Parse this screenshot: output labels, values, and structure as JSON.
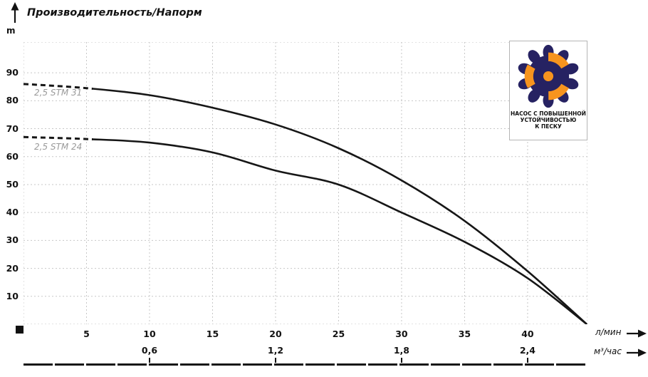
{
  "title": "Производительность/Напорм",
  "y_axis": {
    "unit_label": "m",
    "ticks": [
      90,
      80,
      70,
      60,
      50,
      40,
      30,
      20,
      10
    ]
  },
  "x_axis_primary": {
    "unit_label": "л/мин",
    "ticks": [
      5,
      10,
      15,
      20,
      25,
      30,
      35,
      40
    ]
  },
  "x_axis_secondary": {
    "unit_label": "м³/час",
    "ticks": [
      "0,6",
      "1,2",
      "1,8",
      "2,4"
    ],
    "tick_positions_lmin": [
      10,
      20,
      30,
      40
    ]
  },
  "curves": [
    {
      "label": "2,5 STM 31"
    },
    {
      "label": "2,5 STM 24"
    }
  ],
  "logo": {
    "caption_line1": "НАСОС С ПОВЫШЕННОЙ",
    "caption_line2": "УСТОЙЧИВОСТЬЮ",
    "caption_line3": "К ПЕСКУ",
    "petal_color": "#262262",
    "impeller_color": "#F7941E"
  },
  "colors": {
    "curve": "#161616",
    "grid": "#c7c7c7",
    "curve_label": "#9a9a9a",
    "text": "#121212"
  },
  "chart_data": {
    "type": "line",
    "title": "Производительность/Напорм",
    "xlabel": "л/мин",
    "xlabel_secondary": "м³/час",
    "ylabel": "m",
    "xlim": [
      0,
      44.75
    ],
    "ylim": [
      0,
      101
    ],
    "grid": true,
    "x_ticks_lmin": [
      5,
      10,
      15,
      20,
      25,
      30,
      35,
      40
    ],
    "x_ticks_m3h": [
      0.6,
      1.2,
      1.8,
      2.4
    ],
    "y_ticks": [
      10,
      20,
      30,
      40,
      50,
      60,
      70,
      80,
      90
    ],
    "secondary_x_conversion": "м³/час = л/мин × 0.06",
    "series": [
      {
        "name": "2,5 STM 31",
        "dashed_until_x": 5.5,
        "x": [
          0,
          5,
          10,
          15,
          20,
          25,
          30,
          35,
          40,
          44.7
        ],
        "y": [
          86,
          84.5,
          82,
          77.5,
          71.5,
          63,
          51.5,
          37,
          19,
          0
        ]
      },
      {
        "name": "2,5 STM 24",
        "dashed_until_x": 5.5,
        "x": [
          0,
          5,
          10,
          15,
          20,
          25,
          30,
          35,
          40,
          44.7
        ],
        "y": [
          67,
          66.3,
          65,
          61.5,
          55,
          50,
          40,
          29.5,
          16.5,
          0
        ]
      }
    ]
  }
}
